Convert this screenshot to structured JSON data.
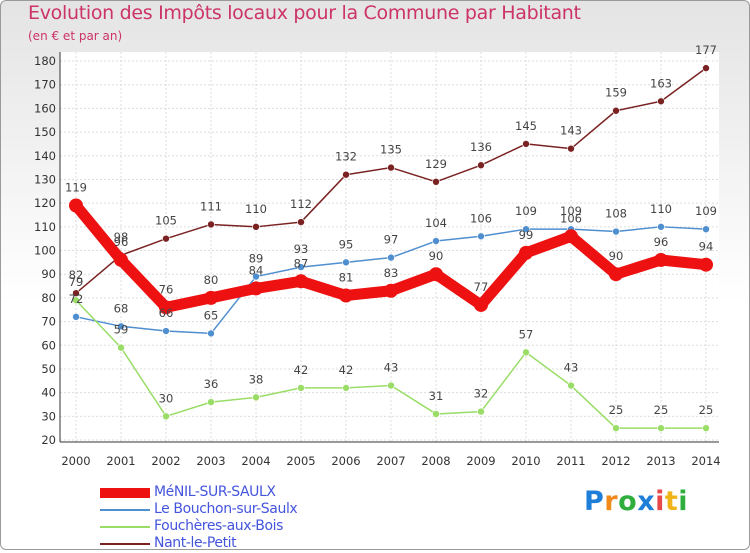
{
  "header": {
    "title": "Evolution des Impôts locaux pour la Commune par Habitant",
    "subtitle": "(en € et par an)"
  },
  "brand": {
    "letters": [
      "P",
      "r",
      "o",
      "x",
      "i",
      "t",
      "i"
    ],
    "colors": [
      "#1f7fd8",
      "#f08a1d",
      "#2fae3e",
      "#1f7fd8",
      "#e84848",
      "#f0b419",
      "#2fae3e"
    ]
  },
  "chart_data": {
    "type": "line",
    "title": "Evolution des Impôts locaux pour la Commune par Habitant",
    "subtitle": "(en € et par an)",
    "xlabel": "",
    "ylabel": "",
    "x": [
      "2000",
      "2001",
      "2002",
      "2003",
      "2004",
      "2005",
      "2006",
      "2007",
      "2008",
      "2009",
      "2010",
      "2011",
      "2012",
      "2013",
      "2014"
    ],
    "ylim": [
      20,
      180
    ],
    "yticks": [
      "20",
      "30",
      "40",
      "50",
      "60",
      "70",
      "80",
      "90",
      "100",
      "110",
      "120",
      "130",
      "140",
      "150",
      "160",
      "170",
      "180"
    ],
    "grid": true,
    "legend_position": "bottom-left",
    "series": [
      {
        "name": "MéNIL-SUR-SAULX",
        "color": "#ee1111",
        "values": [
          119,
          96,
          76,
          80,
          84,
          87,
          81,
          83,
          90,
          77,
          99,
          106,
          90,
          96,
          94
        ],
        "labels": [
          "119",
          "96",
          "76",
          "80",
          "84",
          "87",
          "81",
          "83",
          "90",
          "77",
          "99",
          "106",
          "90",
          "96",
          "94"
        ]
      },
      {
        "name": "Le Bouchon-sur-Saulx",
        "color": "#4f8fd0",
        "values": [
          72,
          68,
          66,
          65,
          89,
          93,
          95,
          97,
          104,
          106,
          109,
          109,
          108,
          110,
          109
        ],
        "labels": [
          "72",
          "68",
          "66",
          "65",
          "89",
          "93",
          "95",
          "97",
          "104",
          "106",
          "109",
          "109",
          "108",
          "110",
          "109"
        ]
      },
      {
        "name": "Fouchères-aux-Bois",
        "color": "#99dd66",
        "values": [
          79,
          59,
          30,
          36,
          38,
          42,
          42,
          43,
          31,
          32,
          57,
          43,
          25,
          25,
          25
        ],
        "labels": [
          "79",
          "59",
          "30",
          "36",
          "38",
          "42",
          "42",
          "43",
          "31",
          "32",
          "57",
          "43",
          "25",
          "25",
          "25"
        ]
      },
      {
        "name": "Nant-le-Petit",
        "color": "#7a2222",
        "values": [
          82,
          98,
          105,
          111,
          110,
          112,
          132,
          135,
          129,
          136,
          145,
          143,
          159,
          163,
          177
        ],
        "labels": [
          "82",
          "98",
          "105",
          "111",
          "110",
          "112",
          "132",
          "135",
          "129",
          "136",
          "145",
          "143",
          "159",
          "163",
          "177"
        ]
      }
    ]
  }
}
